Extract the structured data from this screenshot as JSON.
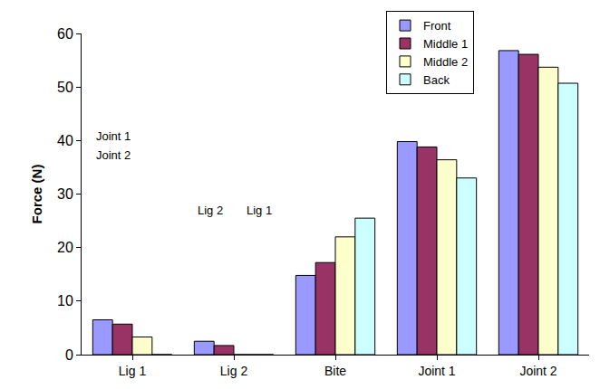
{
  "chart_data": {
    "type": "bar",
    "y_label": "Force (N)",
    "categories": [
      "Lig 1",
      "Lig 2",
      "Bite",
      "Joint 1",
      "Joint 2"
    ],
    "series": [
      {
        "name": "Front",
        "color": "#9999ff",
        "values": [
          6.5,
          2.5,
          14.8,
          39.8,
          56.8
        ]
      },
      {
        "name": "Middle 1",
        "color": "#993366",
        "values": [
          5.7,
          1.7,
          17.2,
          38.8,
          56.1
        ]
      },
      {
        "name": "Middle 2",
        "color": "#ffffcc",
        "values": [
          3.3,
          0,
          22.0,
          36.4,
          53.7
        ]
      },
      {
        "name": "Back",
        "color": "#ccffff",
        "values": [
          0,
          0,
          25.5,
          33.0,
          50.7
        ]
      }
    ],
    "ylim": [
      0,
      60
    ],
    "yticks": [
      0,
      10,
      20,
      30,
      40,
      50,
      60
    ],
    "grid": false,
    "legend": "top right",
    "annotations": [
      "Joint 1",
      "Joint 2",
      "Lig 2",
      "Lig 1"
    ]
  }
}
